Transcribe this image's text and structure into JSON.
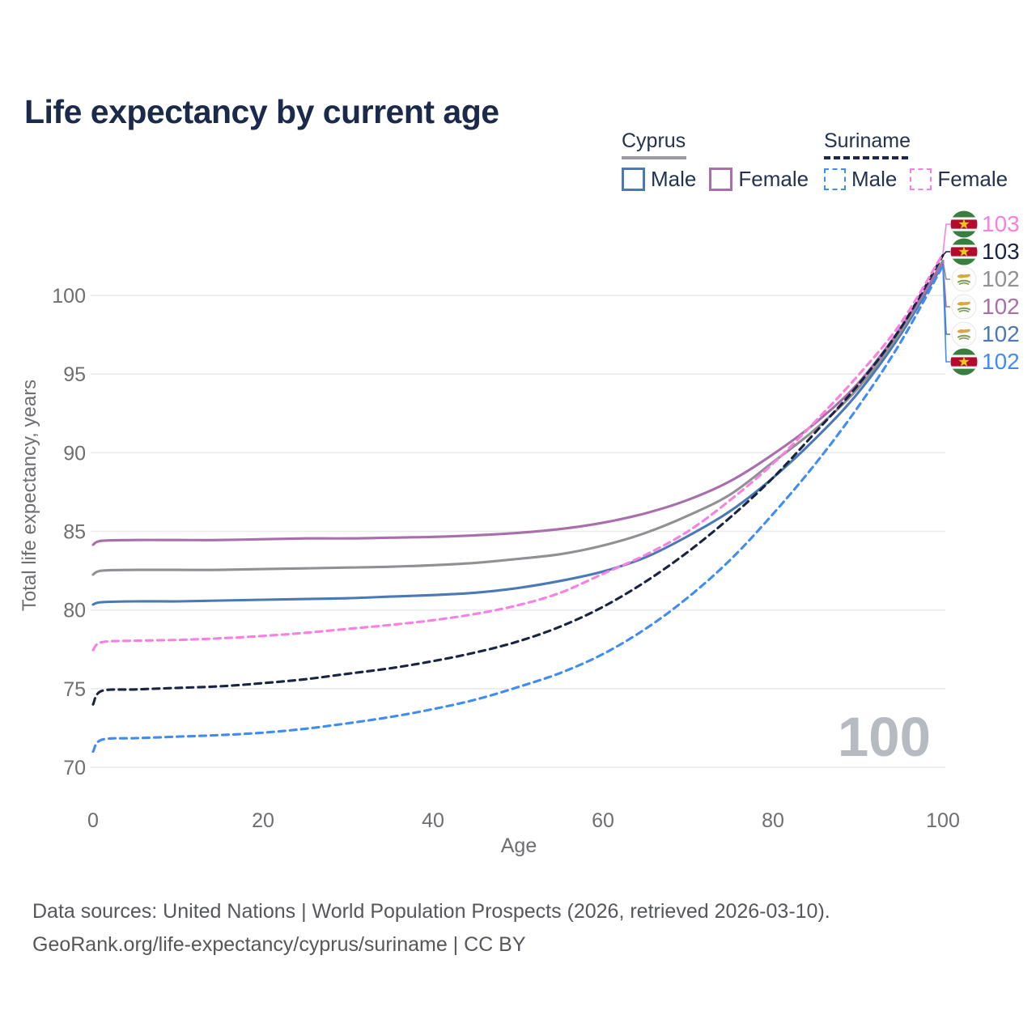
{
  "title": "Life expectancy by current age",
  "legend": {
    "groups": [
      {
        "label": "Cyprus",
        "line_style": "solid",
        "items": [
          {
            "label": "Male",
            "color": "#4a79b6"
          },
          {
            "label": "Female",
            "color": "#a96fab"
          }
        ]
      },
      {
        "label": "Suriname",
        "line_style": "dashed",
        "items": [
          {
            "label": "Male",
            "color": "#3f8df4"
          },
          {
            "label": "Female",
            "color": "#f980e1"
          }
        ]
      }
    ]
  },
  "watermark": "100",
  "footer": {
    "line1": "Data sources: United Nations | World Population Prospects (2026, retrieved 2026-03-10).",
    "line2": "GeoRank.org/life-expectancy/cyprus/suriname | CC BY"
  },
  "chart_data": {
    "type": "line",
    "title": "Life expectancy by current age",
    "xlabel": "Age",
    "ylabel": "Total life expectancy, years",
    "xlim": [
      0,
      100
    ],
    "ylim": [
      70,
      103
    ],
    "x_ticks": [
      0,
      20,
      40,
      60,
      80,
      100
    ],
    "y_ticks": [
      70,
      75,
      80,
      85,
      90,
      95,
      100
    ],
    "grid": "horizontal",
    "legend_position": "top-right",
    "x": [
      0,
      1,
      5,
      10,
      15,
      20,
      25,
      30,
      35,
      40,
      45,
      50,
      55,
      60,
      65,
      70,
      75,
      80,
      85,
      90,
      95,
      100
    ],
    "series": [
      {
        "name": "Cyprus Male",
        "country": "Cyprus",
        "sex": "Male",
        "color": "#4a79b6",
        "dashed": false,
        "end_label": "102",
        "values": [
          80.35,
          80.5,
          80.55,
          80.55,
          80.6,
          80.65,
          80.7,
          80.75,
          80.85,
          80.95,
          81.1,
          81.4,
          81.85,
          82.45,
          83.35,
          84.7,
          86.3,
          88.4,
          90.9,
          93.8,
          97.5,
          102.0
        ]
      },
      {
        "name": "Cyprus Both sexes",
        "country": "Cyprus",
        "sex": "Both sexes",
        "color": "#909095",
        "dashed": false,
        "end_label": "102",
        "values": [
          82.25,
          82.5,
          82.55,
          82.55,
          82.55,
          82.6,
          82.65,
          82.7,
          82.75,
          82.85,
          83.0,
          83.25,
          83.55,
          84.1,
          84.9,
          86.0,
          87.35,
          89.4,
          91.5,
          94.1,
          97.7,
          102.2
        ]
      },
      {
        "name": "Cyprus Female",
        "country": "Cyprus",
        "sex": "Female",
        "color": "#a96fab",
        "dashed": false,
        "end_label": "102",
        "values": [
          84.15,
          84.4,
          84.45,
          84.45,
          84.45,
          84.5,
          84.55,
          84.55,
          84.6,
          84.65,
          84.75,
          84.9,
          85.15,
          85.55,
          86.15,
          87.0,
          88.2,
          89.9,
          91.9,
          94.4,
          97.9,
          102.1
        ]
      },
      {
        "name": "Suriname Male",
        "country": "Suriname",
        "sex": "Male",
        "color": "#3f8df4",
        "dashed": true,
        "end_label": "102",
        "values": [
          71.0,
          71.75,
          71.85,
          71.95,
          72.05,
          72.2,
          72.45,
          72.8,
          73.2,
          73.7,
          74.3,
          75.1,
          76.0,
          77.2,
          78.8,
          80.8,
          83.2,
          86.1,
          89.3,
          92.9,
          97.0,
          101.9
        ]
      },
      {
        "name": "Suriname Both sexes",
        "country": "Suriname",
        "sex": "Both sexes",
        "color": "#182440",
        "dashed": true,
        "end_label": "103",
        "values": [
          74.0,
          74.85,
          74.95,
          75.05,
          75.15,
          75.35,
          75.6,
          75.95,
          76.3,
          76.75,
          77.3,
          78.0,
          78.95,
          80.2,
          81.8,
          83.7,
          85.9,
          88.4,
          91.3,
          94.3,
          97.9,
          102.55
        ]
      },
      {
        "name": "Suriname Female",
        "country": "Suriname",
        "sex": "Female",
        "color": "#f980e1",
        "dashed": true,
        "end_label": "103",
        "values": [
          77.45,
          77.95,
          78.05,
          78.1,
          78.2,
          78.35,
          78.55,
          78.8,
          79.05,
          79.35,
          79.75,
          80.3,
          81.1,
          82.3,
          83.5,
          85.0,
          87.0,
          89.3,
          92.0,
          94.9,
          98.2,
          102.65
        ]
      }
    ],
    "end_labels": [
      {
        "series": "Suriname Female",
        "value": "103"
      },
      {
        "series": "Suriname Both sexes",
        "value": "103"
      },
      {
        "series": "Cyprus Both sexes",
        "value": "102"
      },
      {
        "series": "Cyprus Female",
        "value": "102"
      },
      {
        "series": "Cyprus Male",
        "value": "102"
      },
      {
        "series": "Suriname Male",
        "value": "102"
      }
    ]
  }
}
